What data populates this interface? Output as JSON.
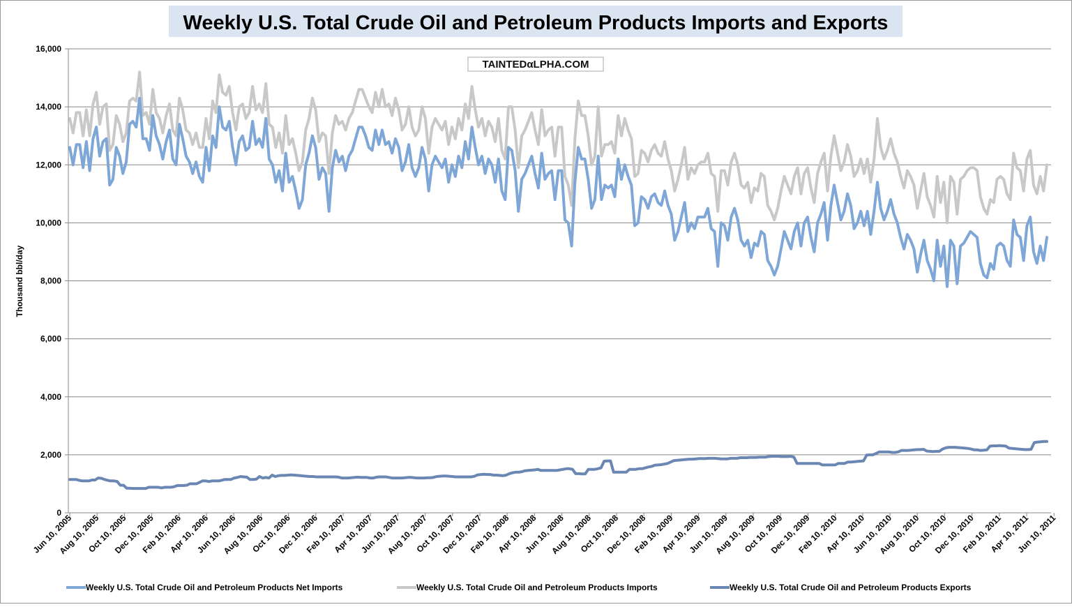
{
  "chart_data": {
    "type": "line",
    "title": "Weekly U.S. Total Crude Oil and Petroleum Products Imports and Exports",
    "ylabel": "Thousand bbl/day",
    "xlabel": "",
    "ylim": [
      0,
      16000
    ],
    "yticks": [
      0,
      2000,
      4000,
      6000,
      8000,
      10000,
      12000,
      14000,
      16000
    ],
    "ytick_labels": [
      "0",
      "2,000",
      "4,000",
      "6,000",
      "8,000",
      "10,000",
      "12,000",
      "14,000",
      "16,000"
    ],
    "x_tick_labels": [
      "Jun 10, 2005",
      "Aug 10, 2005",
      "Oct 10, 2005",
      "Dec 10, 2005",
      "Feb 10, 2006",
      "Apr 10, 2006",
      "Jun 10, 2006",
      "Aug 10, 2006",
      "Oct 10, 2006",
      "Dec 10, 2006",
      "Feb 10, 2007",
      "Apr 10, 2007",
      "Jun 10, 2007",
      "Aug 10, 2007",
      "Oct 10, 2007",
      "Dec 10, 2007",
      "Feb 10, 2008",
      "Apr 10, 2008",
      "Jun 10, 2008",
      "Aug 10, 2008",
      "Oct 10, 2008",
      "Dec 10, 2008",
      "Feb 10, 2009",
      "Apr 10, 2009",
      "Jun 10, 2009",
      "Aug 10, 2009",
      "Oct 10, 2009",
      "Dec 10, 2009",
      "Feb 10, 2010",
      "Apr 10, 2010",
      "Jun 10, 2010",
      "Aug 10, 2010",
      "Oct 10, 2010",
      "Dec 10, 2010",
      "Feb 10, 2011",
      "Apr 10, 2011",
      "Jun 10, 2011"
    ],
    "grid": "horizontal",
    "legend_position": "bottom",
    "watermark": "TAINTEDαLPHA.COM",
    "x_end": "Jul 2011",
    "series": [
      {
        "name": "Weekly U.S. Total Crude Oil and Petroleum Products Net Imports",
        "color": "#7ea6d6",
        "values": [
          12600,
          12000,
          12700,
          12700,
          11900,
          12800,
          11800,
          12900,
          13300,
          12300,
          12800,
          12900,
          11300,
          11500,
          12600,
          12300,
          11700,
          12100,
          13400,
          13500,
          13300,
          14300,
          12900,
          12900,
          12500,
          13700,
          13000,
          12700,
          12200,
          12800,
          13200,
          12200,
          12000,
          13400,
          12900,
          12300,
          12100,
          11700,
          12100,
          11600,
          11400,
          12600,
          11800,
          13000,
          12600,
          14000,
          13300,
          13200,
          13500,
          12600,
          12000,
          12800,
          13000,
          12500,
          12600,
          13500,
          12700,
          12900,
          12600,
          13600,
          12200,
          12000,
          11400,
          11800,
          11100,
          12400,
          11400,
          11600,
          11100,
          10500,
          10800,
          12000,
          12400,
          13000,
          12600,
          11500,
          11900,
          11700,
          10400,
          11900,
          12500,
          12100,
          12300,
          11800,
          12300,
          12500,
          12900,
          13300,
          13300,
          13000,
          12600,
          12500,
          13200,
          12700,
          13200,
          12700,
          12800,
          12400,
          12900,
          12600,
          11800,
          12100,
          12700,
          11900,
          11600,
          11900,
          12600,
          12200,
          11100,
          12000,
          12300,
          12100,
          11900,
          12200,
          11400,
          12000,
          11600,
          12300,
          11900,
          12800,
          12200,
          13300,
          12600,
          12000,
          12300,
          11700,
          12200,
          12000,
          11400,
          12200,
          11100,
          10800,
          12600,
          12500,
          11800,
          10400,
          11500,
          11700,
          12000,
          12300,
          11700,
          11200,
          12400,
          11500,
          11700,
          11800,
          10800,
          11800,
          11800,
          10100,
          10000,
          9200,
          11400,
          12600,
          12200,
          12200,
          11500,
          10500,
          10800,
          12300,
          10800,
          11300,
          11200,
          11300,
          10900,
          12200,
          11500,
          12000,
          11600,
          11300,
          9900,
          10000,
          10900,
          10800,
          10500,
          10900,
          11000,
          10700,
          10600,
          11100,
          10600,
          10300,
          9400,
          9700,
          10200,
          10700,
          9700,
          10000,
          9800,
          10200,
          10200,
          10200,
          10500,
          9800,
          9700,
          8500,
          10000,
          9900,
          9400,
          10200,
          10500,
          10100,
          9400,
          9200,
          9400,
          8800,
          9300,
          9200,
          9700,
          9600,
          8700,
          8500,
          8200,
          8500,
          9100,
          9700,
          9400,
          9100,
          9700,
          10000,
          9200,
          10000,
          10200,
          9500,
          9000,
          10000,
          10300,
          10700,
          9400,
          10600,
          11300,
          10700,
          10100,
          10400,
          11000,
          10600,
          9800,
          10000,
          10400,
          9900,
          10400,
          9600,
          10400,
          11400,
          10500,
          10100,
          10400,
          10800,
          10300,
          10000,
          9500,
          9100,
          9600,
          9400,
          9100,
          8300,
          8900,
          9400,
          8700,
          8400,
          8000,
          9400,
          8500,
          9200,
          7800,
          9400,
          9200,
          7900,
          9200,
          9300,
          9500,
          9700,
          9600,
          9500,
          8600,
          8200,
          8100,
          8600,
          8400,
          9200,
          9300,
          9200,
          8700,
          8500,
          10100,
          9600,
          9500,
          8700,
          9900,
          10200,
          9000,
          8600,
          9200,
          8700,
          9500
        ]
      },
      {
        "name": "Weekly U.S. Total Crude Oil and Petroleum Products Imports",
        "color": "#c8c8c8",
        "values": [
          13600,
          13100,
          13800,
          13800,
          13000,
          13900,
          13000,
          14100,
          14500,
          13400,
          14000,
          14100,
          12500,
          12700,
          13700,
          13400,
          12800,
          13100,
          14200,
          14300,
          14200,
          15200,
          13700,
          13800,
          13400,
          14600,
          13800,
          13600,
          13100,
          13700,
          14100,
          13200,
          13000,
          14300,
          13900,
          13200,
          13100,
          12700,
          13100,
          12600,
          12600,
          13600,
          12900,
          14200,
          13800,
          15100,
          14500,
          14400,
          14700,
          13800,
          13200,
          14000,
          14100,
          13600,
          13800,
          14700,
          13900,
          14100,
          13800,
          14800,
          13400,
          13300,
          12600,
          13100,
          12400,
          13700,
          12700,
          12900,
          12400,
          11800,
          12100,
          13200,
          13600,
          14300,
          13900,
          12800,
          13100,
          13000,
          11700,
          13100,
          13700,
          13400,
          13500,
          13200,
          13600,
          13800,
          14200,
          14600,
          14600,
          14300,
          14000,
          13800,
          14500,
          14000,
          14600,
          14000,
          14100,
          13700,
          14300,
          13900,
          13200,
          13400,
          14000,
          13300,
          13000,
          13200,
          14000,
          13600,
          12400,
          13300,
          13600,
          13400,
          13200,
          13500,
          12700,
          13300,
          12900,
          13600,
          13200,
          14100,
          13600,
          14700,
          13900,
          13300,
          13600,
          13000,
          13500,
          13300,
          12800,
          13600,
          12500,
          12200,
          14000,
          14000,
          13200,
          11900,
          13000,
          13200,
          13500,
          13800,
          13200,
          12700,
          13900,
          13000,
          13200,
          13300,
          12300,
          13300,
          13300,
          11600,
          11300,
          10600,
          12900,
          14200,
          13700,
          13700,
          13000,
          12000,
          12300,
          14000,
          12300,
          12700,
          12700,
          12800,
          12400,
          13700,
          13000,
          13600,
          13200,
          12900,
          11600,
          11700,
          12500,
          12400,
          12100,
          12500,
          12700,
          12400,
          12300,
          12800,
          12200,
          11800,
          11100,
          11500,
          12000,
          12600,
          11500,
          11900,
          11700,
          12000,
          12100,
          12100,
          12400,
          11700,
          11600,
          10400,
          11800,
          11800,
          11300,
          12100,
          12400,
          12000,
          11300,
          11200,
          11400,
          10700,
          11200,
          11100,
          11700,
          11600,
          10600,
          10400,
          10100,
          10500,
          11100,
          11600,
          11300,
          11000,
          11600,
          11900,
          11000,
          11700,
          11900,
          11200,
          10700,
          11700,
          12100,
          12400,
          11100,
          12300,
          13000,
          12400,
          11800,
          12100,
          12700,
          12300,
          11600,
          11800,
          12200,
          11700,
          12200,
          11400,
          12200,
          13600,
          12600,
          12200,
          12500,
          12900,
          12400,
          12100,
          11600,
          11200,
          11800,
          11600,
          11300,
          10500,
          11100,
          11700,
          10900,
          10600,
          10200,
          11600,
          10700,
          11400,
          10000,
          11600,
          11400,
          10300,
          11500,
          11600,
          11800,
          11900,
          11900,
          11800,
          10900,
          10500,
          10300,
          10800,
          10700,
          11500,
          11600,
          11500,
          11000,
          10800,
          12400,
          11900,
          11800,
          11100,
          12200,
          12500,
          11300,
          11000,
          11600,
          11100,
          12000
        ]
      },
      {
        "name": "Weekly U.S. Total Crude Oil and Petroleum Products Exports",
        "color": "#6a86b2",
        "values": [
          1150,
          1150,
          1150,
          1120,
          1100,
          1100,
          1100,
          1130,
          1130,
          1200,
          1190,
          1150,
          1120,
          1100,
          1100,
          1080,
          950,
          950,
          850,
          850,
          840,
          840,
          840,
          840,
          840,
          880,
          880,
          880,
          880,
          860,
          880,
          880,
          880,
          900,
          940,
          940,
          940,
          950,
          1000,
          1000,
          1000,
          1050,
          1100,
          1100,
          1080,
          1100,
          1100,
          1100,
          1120,
          1150,
          1150,
          1150,
          1200,
          1220,
          1250,
          1240,
          1230,
          1150,
          1150,
          1160,
          1250,
          1200,
          1220,
          1200,
          1300,
          1250,
          1280,
          1290,
          1290,
          1300,
          1310,
          1300,
          1290,
          1280,
          1270,
          1260,
          1250,
          1250,
          1240,
          1240,
          1240,
          1240,
          1240,
          1240,
          1240,
          1230,
          1200,
          1200,
          1200,
          1210,
          1220,
          1230,
          1220,
          1220,
          1220,
          1200,
          1200,
          1230,
          1240,
          1240,
          1240,
          1220,
          1200,
          1200,
          1200,
          1200,
          1210,
          1220,
          1220,
          1210,
          1200,
          1200,
          1200,
          1210,
          1210,
          1220,
          1250,
          1260,
          1270,
          1270,
          1260,
          1250,
          1240,
          1240,
          1240,
          1240,
          1240,
          1240,
          1260,
          1310,
          1320,
          1330,
          1320,
          1320,
          1300,
          1300,
          1290,
          1280,
          1300,
          1350,
          1380,
          1400,
          1400,
          1420,
          1450,
          1460,
          1470,
          1480,
          1500,
          1460,
          1460,
          1460,
          1460,
          1460,
          1460,
          1480,
          1500,
          1520,
          1520,
          1500,
          1350,
          1350,
          1340,
          1340,
          1500,
          1500,
          1500,
          1520,
          1550,
          1780,
          1790,
          1790,
          1400,
          1400,
          1400,
          1400,
          1400,
          1500,
          1500,
          1500,
          1520,
          1520,
          1550,
          1580,
          1600,
          1640,
          1650,
          1660,
          1680,
          1700,
          1750,
          1800,
          1810,
          1820,
          1830,
          1840,
          1850,
          1850,
          1860,
          1870,
          1870,
          1870,
          1880,
          1880,
          1880,
          1870,
          1860,
          1860,
          1860,
          1880,
          1880,
          1880,
          1900,
          1900,
          1900,
          1910,
          1910,
          1910,
          1920,
          1920,
          1920,
          1940,
          1950,
          1950,
          1950,
          1940,
          1940,
          1940,
          1950,
          1920,
          1700,
          1700,
          1700,
          1700,
          1700,
          1700,
          1700,
          1700,
          1650,
          1650,
          1650,
          1650,
          1650,
          1700,
          1700,
          1700,
          1750,
          1750,
          1760,
          1770,
          1780,
          1790,
          1990,
          2000,
          2000,
          2050,
          2100,
          2100,
          2100,
          2100,
          2080,
          2080,
          2100,
          2150,
          2150,
          2150,
          2160,
          2170,
          2180,
          2180,
          2190,
          2130,
          2120,
          2110,
          2120,
          2120,
          2200,
          2240,
          2260,
          2260,
          2260,
          2250,
          2240,
          2230,
          2220,
          2200,
          2170,
          2170,
          2150,
          2160,
          2170,
          2300,
          2310,
          2310,
          2320,
          2310,
          2300,
          2230,
          2220,
          2210,
          2200,
          2190,
          2180,
          2180,
          2190,
          2420,
          2440,
          2450,
          2460,
          2460
        ]
      }
    ]
  }
}
